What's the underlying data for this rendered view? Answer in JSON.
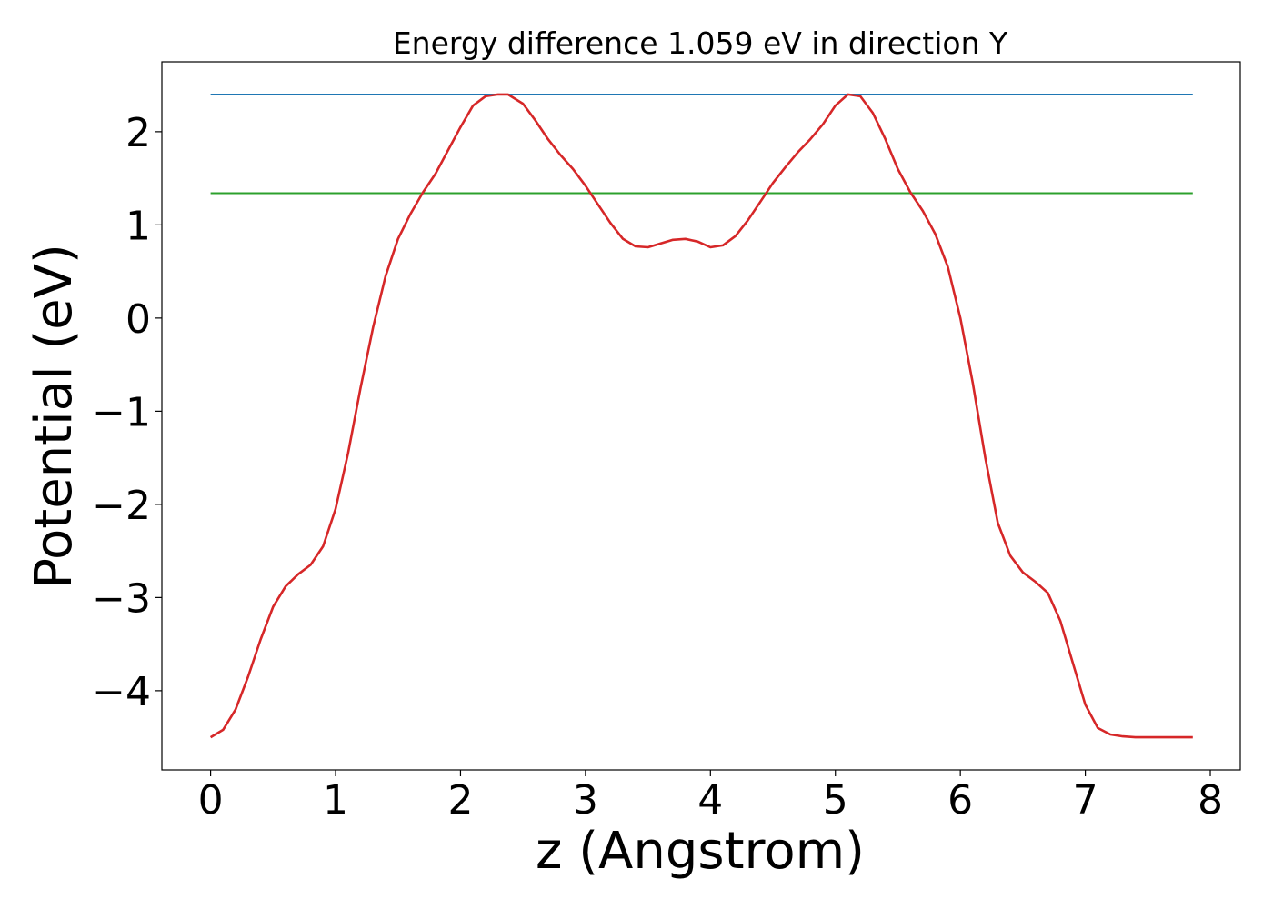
{
  "chart_data": {
    "type": "line",
    "title": "Energy difference 1.059 eV in direction Y",
    "xlabel": "z (Angstrom)",
    "ylabel": "Potential (eV)",
    "xlim": [
      -0.39,
      8.24
    ],
    "ylim": [
      -4.85,
      2.75
    ],
    "xticks": [
      0,
      1,
      2,
      3,
      4,
      5,
      6,
      7,
      8
    ],
    "yticks": [
      -4,
      -3,
      -2,
      -1,
      0,
      1,
      2
    ],
    "xtick_labels": [
      "0",
      "1",
      "2",
      "3",
      "4",
      "5",
      "6",
      "7",
      "8"
    ],
    "ytick_labels": [
      "−4",
      "−3",
      "−2",
      "−1",
      "0",
      "1",
      "2"
    ],
    "grid": false,
    "series": [
      {
        "color": "#d62728",
        "x": [
          0.0,
          0.1,
          0.2,
          0.3,
          0.4,
          0.5,
          0.6,
          0.7,
          0.8,
          0.9,
          1.0,
          1.1,
          1.2,
          1.3,
          1.4,
          1.5,
          1.6,
          1.7,
          1.8,
          1.9,
          2.0,
          2.1,
          2.2,
          2.3,
          2.38,
          2.5,
          2.6,
          2.7,
          2.8,
          2.9,
          3.0,
          3.1,
          3.2,
          3.3,
          3.4,
          3.5,
          3.6,
          3.7,
          3.8,
          3.9,
          4.0,
          4.1,
          4.2,
          4.3,
          4.4,
          4.5,
          4.6,
          4.7,
          4.8,
          4.9,
          5.0,
          5.1,
          5.2,
          5.3,
          5.4,
          5.5,
          5.6,
          5.7,
          5.8,
          5.9,
          6.0,
          6.1,
          6.2,
          6.3,
          6.4,
          6.5,
          6.6,
          6.7,
          6.8,
          6.9,
          7.0,
          7.1,
          7.2,
          7.3,
          7.4,
          7.5,
          7.6,
          7.7,
          7.8,
          7.86
        ],
        "y": [
          -4.5,
          -4.42,
          -4.2,
          -3.85,
          -3.45,
          -3.1,
          -2.88,
          -2.75,
          -2.65,
          -2.45,
          -2.05,
          -1.45,
          -0.75,
          -0.1,
          0.45,
          0.85,
          1.12,
          1.35,
          1.55,
          1.8,
          2.05,
          2.28,
          2.38,
          2.4,
          2.4,
          2.3,
          2.12,
          1.92,
          1.75,
          1.6,
          1.42,
          1.22,
          1.02,
          0.85,
          0.77,
          0.76,
          0.8,
          0.84,
          0.85,
          0.82,
          0.76,
          0.78,
          0.88,
          1.05,
          1.25,
          1.45,
          1.62,
          1.78,
          1.92,
          2.08,
          2.28,
          2.4,
          2.38,
          2.2,
          1.92,
          1.6,
          1.35,
          1.15,
          0.9,
          0.55,
          0.0,
          -0.7,
          -1.5,
          -2.2,
          -2.55,
          -2.73,
          -2.83,
          -2.95,
          -3.25,
          -3.7,
          -4.15,
          -4.4,
          -4.47,
          -4.49,
          -4.5,
          -4.5,
          -4.5,
          -4.5,
          -4.5,
          -4.5
        ]
      },
      {
        "color": "#1f77b4",
        "x": [
          0.0,
          7.86
        ],
        "y": [
          2.4,
          2.4
        ]
      },
      {
        "color": "#2ca02c",
        "x": [
          0.0,
          7.86
        ],
        "y": [
          1.34,
          1.34
        ]
      }
    ]
  }
}
